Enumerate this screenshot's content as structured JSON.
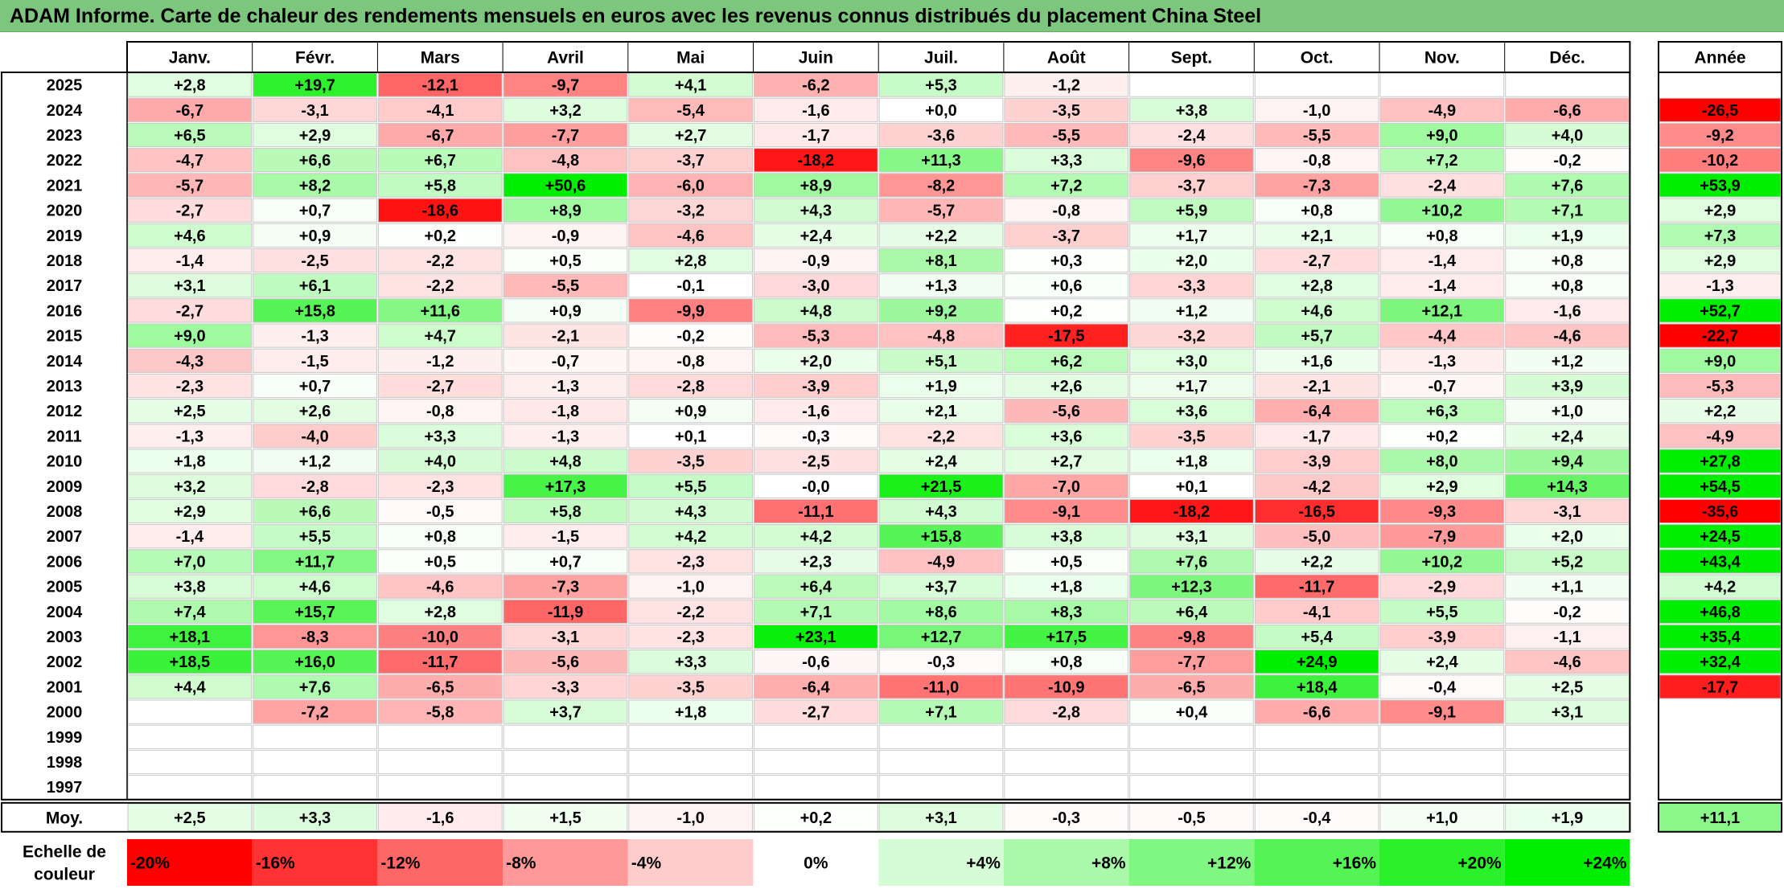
{
  "title": "ADAM Informe. Carte de chaleur des rendements mensuels en euros avec les revenus connus distribués du placement China Steel",
  "chart_data": {
    "type": "heatmap",
    "title": "ADAM Informe. Carte de chaleur des rendements mensuels en euros avec les revenus connus distribués du placement China Steel",
    "months": [
      "Janv.",
      "Févr.",
      "Mars",
      "Avril",
      "Mai",
      "Juin",
      "Juil.",
      "Août",
      "Sept.",
      "Oct.",
      "Nov.",
      "Déc."
    ],
    "year_header": "Année",
    "avg_label": "Moy.",
    "rows": [
      {
        "year": "2025",
        "values": [
          "+2,8",
          "+19,7",
          "-12,1",
          "-9,7",
          "+4,1",
          "-6,2",
          "+5,3",
          "-1,2",
          "",
          "",
          "",
          ""
        ],
        "annual": ""
      },
      {
        "year": "2024",
        "values": [
          "-6,7",
          "-3,1",
          "-4,1",
          "+3,2",
          "-5,4",
          "-1,6",
          "+0,0",
          "-3,5",
          "+3,8",
          "-1,0",
          "-4,9",
          "-6,6"
        ],
        "annual": "-26,5"
      },
      {
        "year": "2023",
        "values": [
          "+6,5",
          "+2,9",
          "-6,7",
          "-7,7",
          "+2,7",
          "-1,7",
          "-3,6",
          "-5,5",
          "-2,4",
          "-5,5",
          "+9,0",
          "+4,0"
        ],
        "annual": "-9,2"
      },
      {
        "year": "2022",
        "values": [
          "-4,7",
          "+6,6",
          "+6,7",
          "-4,8",
          "-3,7",
          "-18,2",
          "+11,3",
          "+3,3",
          "-9,6",
          "-0,8",
          "+7,2",
          "-0,2"
        ],
        "annual": "-10,2"
      },
      {
        "year": "2021",
        "values": [
          "-5,7",
          "+8,2",
          "+5,8",
          "+50,6",
          "-6,0",
          "+8,9",
          "-8,2",
          "+7,2",
          "-3,7",
          "-7,3",
          "-2,4",
          "+7,6"
        ],
        "annual": "+53,9"
      },
      {
        "year": "2020",
        "values": [
          "-2,7",
          "+0,7",
          "-18,6",
          "+8,9",
          "-3,2",
          "+4,3",
          "-5,7",
          "-0,8",
          "+5,9",
          "+0,8",
          "+10,2",
          "+7,1"
        ],
        "annual": "+2,9"
      },
      {
        "year": "2019",
        "values": [
          "+4,6",
          "+0,9",
          "+0,2",
          "-0,9",
          "-4,6",
          "+2,4",
          "+2,2",
          "-3,7",
          "+1,7",
          "+2,1",
          "+0,8",
          "+1,9"
        ],
        "annual": "+7,3"
      },
      {
        "year": "2018",
        "values": [
          "-1,4",
          "-2,5",
          "-2,2",
          "+0,5",
          "+2,8",
          "-0,9",
          "+8,1",
          "+0,3",
          "+2,0",
          "-2,7",
          "-1,4",
          "+0,8"
        ],
        "annual": "+2,9"
      },
      {
        "year": "2017",
        "values": [
          "+3,1",
          "+6,1",
          "-2,2",
          "-5,5",
          "-0,1",
          "-3,0",
          "+1,3",
          "+0,6",
          "-3,3",
          "+2,8",
          "-1,4",
          "+0,8"
        ],
        "annual": "-1,3"
      },
      {
        "year": "2016",
        "values": [
          "-2,7",
          "+15,8",
          "+11,6",
          "+0,9",
          "-9,9",
          "+4,8",
          "+9,2",
          "+0,2",
          "+1,2",
          "+4,6",
          "+12,1",
          "-1,6"
        ],
        "annual": "+52,7"
      },
      {
        "year": "2015",
        "values": [
          "+9,0",
          "-1,3",
          "+4,7",
          "-2,1",
          "-0,2",
          "-5,3",
          "-4,8",
          "-17,5",
          "-3,2",
          "+5,7",
          "-4,4",
          "-4,6"
        ],
        "annual": "-22,7"
      },
      {
        "year": "2014",
        "values": [
          "-4,3",
          "-1,5",
          "-1,2",
          "-0,7",
          "-0,8",
          "+2,0",
          "+5,1",
          "+6,2",
          "+3,0",
          "+1,6",
          "-1,3",
          "+1,2"
        ],
        "annual": "+9,0"
      },
      {
        "year": "2013",
        "values": [
          "-2,3",
          "+0,7",
          "-2,7",
          "-1,3",
          "-2,8",
          "-3,9",
          "+1,9",
          "+2,6",
          "+1,7",
          "-2,1",
          "-0,7",
          "+3,9"
        ],
        "annual": "-5,3"
      },
      {
        "year": "2012",
        "values": [
          "+2,5",
          "+2,6",
          "-0,8",
          "-1,8",
          "+0,9",
          "-1,6",
          "+2,1",
          "-5,6",
          "+3,6",
          "-6,4",
          "+6,3",
          "+1,0"
        ],
        "annual": "+2,2"
      },
      {
        "year": "2011",
        "values": [
          "-1,3",
          "-4,0",
          "+3,3",
          "-1,3",
          "+0,1",
          "-0,3",
          "-2,2",
          "+3,6",
          "-3,5",
          "-1,7",
          "+0,2",
          "+2,4"
        ],
        "annual": "-4,9"
      },
      {
        "year": "2010",
        "values": [
          "+1,8",
          "+1,2",
          "+4,0",
          "+4,8",
          "-3,5",
          "-2,5",
          "+2,4",
          "+2,7",
          "+1,8",
          "-3,9",
          "+8,0",
          "+9,4"
        ],
        "annual": "+27,8"
      },
      {
        "year": "2009",
        "values": [
          "+3,2",
          "-2,8",
          "-2,3",
          "+17,3",
          "+5,5",
          "-0,0",
          "+21,5",
          "-7,0",
          "+0,1",
          "-4,2",
          "+2,9",
          "+14,3"
        ],
        "annual": "+54,5"
      },
      {
        "year": "2008",
        "values": [
          "+2,9",
          "+6,6",
          "-0,5",
          "+5,8",
          "+4,3",
          "-11,1",
          "+4,3",
          "-9,1",
          "-18,2",
          "-16,5",
          "-9,3",
          "-3,1"
        ],
        "annual": "-35,6"
      },
      {
        "year": "2007",
        "values": [
          "-1,4",
          "+5,5",
          "+0,8",
          "-1,5",
          "+4,2",
          "+4,2",
          "+15,8",
          "+3,8",
          "+3,1",
          "-5,0",
          "-7,9",
          "+2,0"
        ],
        "annual": "+24,5"
      },
      {
        "year": "2006",
        "values": [
          "+7,0",
          "+11,7",
          "+0,5",
          "+0,7",
          "-2,3",
          "+2,3",
          "-4,9",
          "+0,5",
          "+7,6",
          "+2,2",
          "+10,2",
          "+5,2"
        ],
        "annual": "+43,4"
      },
      {
        "year": "2005",
        "values": [
          "+3,8",
          "+4,6",
          "-4,6",
          "-7,3",
          "-1,0",
          "+6,4",
          "+3,7",
          "+1,8",
          "+12,3",
          "-11,7",
          "-2,9",
          "+1,1"
        ],
        "annual": "+4,2"
      },
      {
        "year": "2004",
        "values": [
          "+7,4",
          "+15,7",
          "+2,8",
          "-11,9",
          "-2,2",
          "+7,1",
          "+8,6",
          "+8,3",
          "+6,4",
          "-4,1",
          "+5,5",
          "-0,2"
        ],
        "annual": "+46,8"
      },
      {
        "year": "2003",
        "values": [
          "+18,1",
          "-8,3",
          "-10,0",
          "-3,1",
          "-2,3",
          "+23,1",
          "+12,7",
          "+17,5",
          "-9,8",
          "+5,4",
          "-3,9",
          "-1,1"
        ],
        "annual": "+35,4"
      },
      {
        "year": "2002",
        "values": [
          "+18,5",
          "+16,0",
          "-11,7",
          "-5,6",
          "+3,3",
          "-0,6",
          "-0,3",
          "+0,8",
          "-7,7",
          "+24,9",
          "+2,4",
          "-4,6"
        ],
        "annual": "+32,4"
      },
      {
        "year": "2001",
        "values": [
          "+4,4",
          "+7,6",
          "-6,5",
          "-3,3",
          "-3,5",
          "-6,4",
          "-11,0",
          "-10,9",
          "-6,5",
          "+18,4",
          "-0,4",
          "+2,5"
        ],
        "annual": "-17,7"
      },
      {
        "year": "2000",
        "values": [
          "",
          "-7,2",
          "-5,8",
          "+3,7",
          "+1,8",
          "-2,7",
          "+7,1",
          "-2,8",
          "+0,4",
          "-6,6",
          "-9,1",
          "+3,1"
        ],
        "annual": ""
      },
      {
        "year": "1999",
        "values": [
          "",
          "",
          "",
          "",
          "",
          "",
          "",
          "",
          "",
          "",
          "",
          ""
        ],
        "annual": ""
      },
      {
        "year": "1998",
        "values": [
          "",
          "",
          "",
          "",
          "",
          "",
          "",
          "",
          "",
          "",
          "",
          ""
        ],
        "annual": ""
      },
      {
        "year": "1997",
        "values": [
          "",
          "",
          "",
          "",
          "",
          "",
          "",
          "",
          "",
          "",
          "",
          ""
        ],
        "annual": ""
      }
    ],
    "averages": [
      "+2,5",
      "+3,3",
      "-1,6",
      "+1,5",
      "-1,0",
      "+0,2",
      "+3,1",
      "-0,3",
      "-0,5",
      "-0,4",
      "+1,0",
      "+1,9"
    ],
    "average_annual": "+11,1",
    "scale_label": "Echelle de couleur",
    "scale": [
      {
        "label": "-20%",
        "value": -20,
        "align": "left"
      },
      {
        "label": "-16%",
        "value": -16,
        "align": "left"
      },
      {
        "label": "-12%",
        "value": -12,
        "align": "left"
      },
      {
        "label": "-8%",
        "value": -8,
        "align": "left"
      },
      {
        "label": "-4%",
        "value": -4,
        "align": "left"
      },
      {
        "label": "0%",
        "value": 0,
        "align": "center"
      },
      {
        "label": "+4%",
        "value": 4,
        "align": "right"
      },
      {
        "label": "+8%",
        "value": 8,
        "align": "right"
      },
      {
        "label": "+12%",
        "value": 12,
        "align": "right"
      },
      {
        "label": "+16%",
        "value": 16,
        "align": "right"
      },
      {
        "label": "+20%",
        "value": 20,
        "align": "right"
      },
      {
        "label": "+24%",
        "value": 24,
        "align": "right"
      }
    ],
    "colors": {
      "negative_max": "#ff0000",
      "positive_max": "#00ee00",
      "neutral": "#ffffff",
      "title_bar": "#7dc67d"
    }
  }
}
